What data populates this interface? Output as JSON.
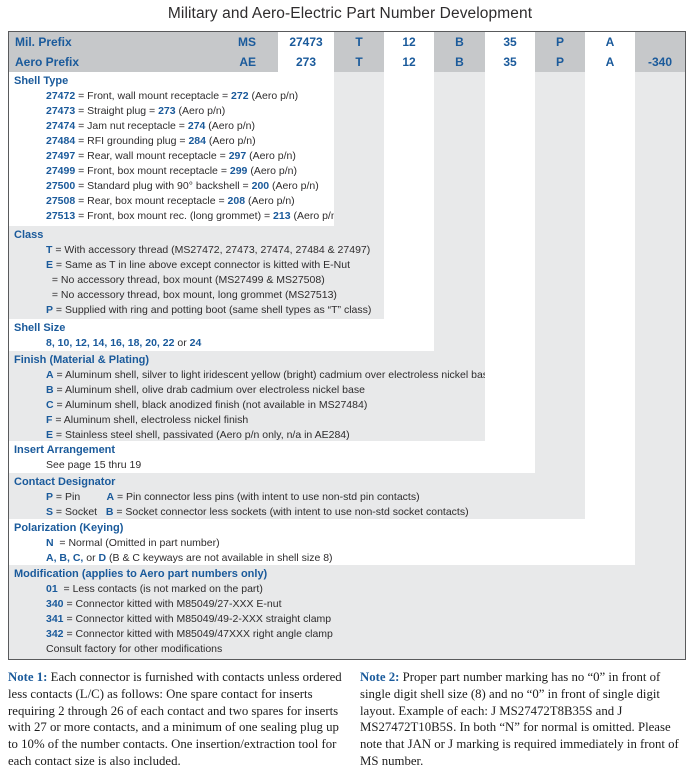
{
  "title": "Military and Aero-Electric Part Number Development",
  "colors": {
    "accent_blue": "#1a5a9b",
    "header_gray": "#c6c8ca",
    "band_gray": "#e8e9ea",
    "border": "#595a5c"
  },
  "header": {
    "rows": [
      {
        "label": "Mil. Prefix",
        "prefix": "MS",
        "cells": [
          "27473",
          "T",
          "12",
          "B",
          "35",
          "P",
          "A",
          ""
        ]
      },
      {
        "label": "Aero Prefix",
        "prefix": "AE",
        "cells": [
          "273",
          "T",
          "12",
          "B",
          "35",
          "P",
          "A",
          "-340"
        ]
      }
    ]
  },
  "sections": [
    {
      "heading": "Shell Type",
      "lines": [
        [
          {
            "t": "27472",
            "b": 1
          },
          {
            "t": " = Front, wall mount receptacle = "
          },
          {
            "t": "272",
            "b": 1
          },
          {
            "t": " (Aero p/n)"
          }
        ],
        [
          {
            "t": "27473",
            "b": 1
          },
          {
            "t": " = Straight plug = "
          },
          {
            "t": "273",
            "b": 1
          },
          {
            "t": " (Aero p/n)"
          }
        ],
        [
          {
            "t": "27474",
            "b": 1
          },
          {
            "t": " = Jam nut receptacle = "
          },
          {
            "t": "274",
            "b": 1
          },
          {
            "t": " (Aero p/n)"
          }
        ],
        [
          {
            "t": "27484",
            "b": 1
          },
          {
            "t": " = RFI grounding plug = "
          },
          {
            "t": "284",
            "b": 1
          },
          {
            "t": " (Aero p/n)"
          }
        ],
        [
          {
            "t": "27497",
            "b": 1
          },
          {
            "t": " = Rear, wall mount receptacle = "
          },
          {
            "t": "297",
            "b": 1
          },
          {
            "t": " (Aero p/n)"
          }
        ],
        [
          {
            "t": "27499",
            "b": 1
          },
          {
            "t": " = Front, box mount receptacle = "
          },
          {
            "t": "299",
            "b": 1
          },
          {
            "t": " (Aero p/n)"
          }
        ],
        [
          {
            "t": "27500",
            "b": 1
          },
          {
            "t": " = Standard plug with 90° backshell = "
          },
          {
            "t": "200",
            "b": 1
          },
          {
            "t": " (Aero p/n)"
          }
        ],
        [
          {
            "t": "27508",
            "b": 1
          },
          {
            "t": " = Rear, box mount receptacle = "
          },
          {
            "t": "208",
            "b": 1
          },
          {
            "t": " (Aero p/n)"
          }
        ],
        [
          {
            "t": "27513",
            "b": 1
          },
          {
            "t": " = Front, box mount rec. (long grommet) = "
          },
          {
            "t": "213",
            "b": 1
          },
          {
            "t": " (Aero p/n)"
          }
        ]
      ]
    },
    {
      "heading": "Class",
      "lines": [
        [
          {
            "t": "T",
            "b": 1
          },
          {
            "t": " = With accessory thread  (MS27472, 27473, 27474, 27484 & 27497)"
          }
        ],
        [
          {
            "t": "E",
            "b": 1
          },
          {
            "t": " = Same as T in line above except connector is kitted with E-Nut"
          }
        ],
        [
          {
            "t": "  = No accessory thread, box mount (MS27499 &  MS27508)"
          }
        ],
        [
          {
            "t": "  = No accessory thread, box mount, long grommet (MS27513)"
          }
        ],
        [
          {
            "t": "P",
            "b": 1
          },
          {
            "t": " = Supplied with ring and potting boot (same shell types as “T” class)"
          }
        ]
      ]
    },
    {
      "heading": "Shell Size",
      "lines": [
        [
          {
            "t": "8, 10, 12, 14, 16, 18, 20, 22",
            "b": 1
          },
          {
            "t": " or "
          },
          {
            "t": "24",
            "b": 1
          }
        ]
      ]
    },
    {
      "heading": "Finish (Material & Plating)",
      "lines": [
        [
          {
            "t": "A",
            "b": 1
          },
          {
            "t": " = Aluminum shell, silver to light iridescent yellow (bright) cadmium over electroless nickel base"
          }
        ],
        [
          {
            "t": "B",
            "b": 1
          },
          {
            "t": " = Aluminum shell, olive drab cadmium over electroless nickel base"
          }
        ],
        [
          {
            "t": "C",
            "b": 1
          },
          {
            "t": " = Aluminum shell, black anodized finish (not available in MS27484)"
          }
        ],
        [
          {
            "t": "F",
            "b": 1
          },
          {
            "t": " = Aluminum shell, electroless nickel finish"
          }
        ],
        [
          {
            "t": "E",
            "b": 1
          },
          {
            "t": " = Stainless steel shell, passivated (Aero p/n only, n/a in AE284)"
          }
        ]
      ]
    },
    {
      "heading": "Insert Arrangement",
      "lines": [
        [
          {
            "t": "See page 15 thru 19"
          }
        ]
      ]
    },
    {
      "heading": "Contact Designator",
      "lines": [
        [
          {
            "t": "P",
            "b": 1
          },
          {
            "t": " = Pin"
          },
          {
            "t": "         "
          },
          {
            "t": "A",
            "b": 1
          },
          {
            "t": " = Pin connector less pins (with intent to use non-std pin contacts)"
          }
        ],
        [
          {
            "t": "S",
            "b": 1
          },
          {
            "t": " = Socket"
          },
          {
            "t": "   "
          },
          {
            "t": "B",
            "b": 1
          },
          {
            "t": " = Socket connector less sockets (with intent to use non-std socket contacts)"
          }
        ]
      ]
    },
    {
      "heading": "Polarization (Keying)",
      "lines": [
        [
          {
            "t": "N",
            "b": 1
          },
          {
            "t": "  = Normal (Omitted in part number)"
          }
        ],
        [
          {
            "t": "A, B, C,",
            "b": 1
          },
          {
            "t": " or "
          },
          {
            "t": "D",
            "b": 1
          },
          {
            "t": " (B & C keyways are not available in shell size 8)"
          }
        ]
      ]
    },
    {
      "heading": "Modification (applies to Aero part numbers only)",
      "lines": [
        [
          {
            "t": "01",
            "b": 1
          },
          {
            "t": "  = Less contacts (is not marked on the part)"
          }
        ],
        [
          {
            "t": "340",
            "b": 1
          },
          {
            "t": " = Connector kitted with M85049/27-XXX E-nut"
          }
        ],
        [
          {
            "t": "341",
            "b": 1
          },
          {
            "t": " = Connector kitted with M85049/49-2-XXX straight clamp"
          }
        ],
        [
          {
            "t": "342",
            "b": 1
          },
          {
            "t": " = Connector kitted with M85049/47XXX right angle clamp"
          }
        ],
        [
          {
            "t": "Consult factory for other modifications"
          }
        ]
      ]
    }
  ],
  "notes": [
    {
      "label": "Note 1:",
      "text": "Each connector is furnished with contacts unless ordered less contacts (L/C) as follows: One spare contact for inserts requiring 2 through 26 of each contact and two spares for inserts with 27 or more contacts, and a minimum of one sealing plug up to 10% of the number contacts. One insertion/extraction tool for each contact size is also included."
    },
    {
      "label": "Note 2:",
      "text": "Proper part number marking has no “0” in front of single digit shell size (8) and no “0” in front of single digit layout. Example of each: J MS27472T8B35S and J MS27472T10B5S. In both “N” for normal is omitted. Please note that JAN or J marking is required immediately in front of MS number."
    }
  ]
}
